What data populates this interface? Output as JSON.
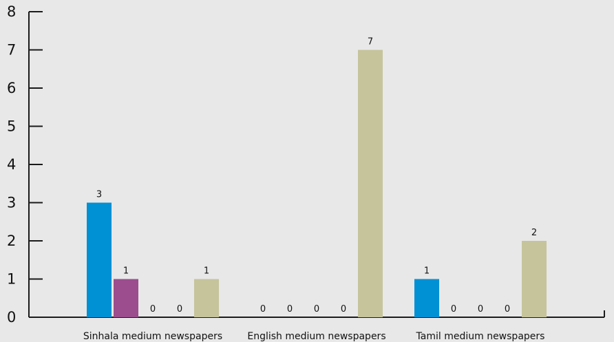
{
  "chart_data": {
    "type": "bar",
    "categories": [
      "Sinhala medium newspapers",
      "English medium newspapers",
      "Tamil medium newspapers"
    ],
    "series": [
      {
        "values": [
          3,
          0,
          1
        ],
        "color": "#0090d4"
      },
      {
        "values": [
          1,
          0,
          0
        ],
        "color": "#9b4d8e"
      },
      {
        "values": [
          0,
          0,
          0
        ],
        "color": "#4a7f3a"
      },
      {
        "values": [
          0,
          0,
          0
        ],
        "color": "#d04a2a"
      },
      {
        "values": [
          1,
          7,
          2
        ],
        "color": "#c6c49b"
      }
    ],
    "yticks": [
      "0",
      "1",
      "2",
      "3",
      "4",
      "5",
      "6",
      "7",
      "8"
    ],
    "ylim": [
      0,
      8
    ],
    "title": "",
    "xlabel": "",
    "ylabel": "",
    "grid": false,
    "legend": "none"
  }
}
